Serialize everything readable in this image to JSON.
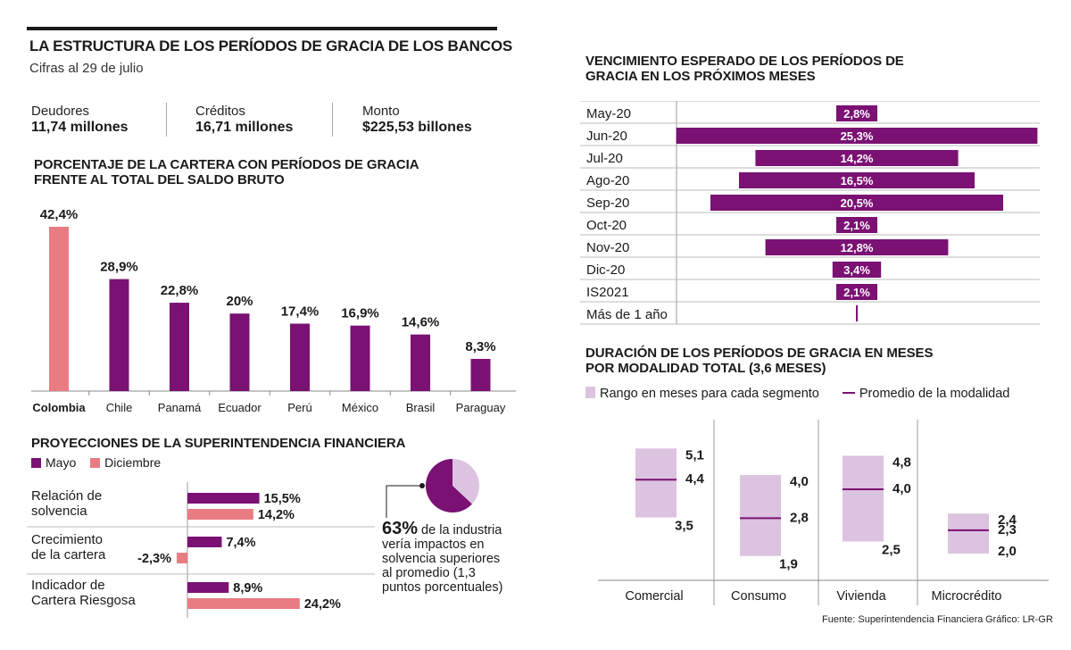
{
  "header": {
    "title": "LA ESTRUCTURA DE LOS PERÍODOS DE GRACIA DE LOS BANCOS",
    "subtitle": "Cifras al 29 de julio"
  },
  "stats": [
    {
      "label": "Deudores",
      "value": "11,74 millones"
    },
    {
      "label": "Créditos",
      "value": "16,71 millones"
    },
    {
      "label": "Monto",
      "value": "$225,53 billones"
    }
  ],
  "colors": {
    "purple": "#7a1173",
    "pink": "#e97b83",
    "lavender": "#dcc3e0",
    "avg": "#7a1173"
  },
  "chart_data": [
    {
      "type": "bar",
      "title": "PORCENTAJE DE LA CARTERA CON PERÍODOS DE GRACIA FRENTE AL TOTAL DEL SALDO BRUTO",
      "categories": [
        "Colombia",
        "Chile",
        "Panamá",
        "Ecuador",
        "Perú",
        "México",
        "Brasil",
        "Paraguay"
      ],
      "values": [
        42.4,
        28.9,
        22.8,
        20,
        17.4,
        16.9,
        14.6,
        8.3
      ],
      "labels": [
        "42,4%",
        "28,9%",
        "22,8%",
        "20%",
        "17,4%",
        "16,9%",
        "14,6%",
        "8,3%"
      ],
      "highlight": "Colombia",
      "ylim": [
        0,
        42.4
      ]
    },
    {
      "type": "bar",
      "orientation": "horizontal",
      "title": "PROYECCIONES DE LA SUPERINTENDENCIA FINANCIERA",
      "categories": [
        "Relación de solvencia",
        "Crecimiento de la cartera",
        "Indicador de Cartera Riesgosa"
      ],
      "category_lines": [
        [
          "Relación de",
          "solvencia"
        ],
        [
          "Crecimiento",
          "de la cartera"
        ],
        [
          "Indicador de",
          "Cartera Riesgosa"
        ]
      ],
      "series": [
        {
          "name": "Mayo",
          "values": [
            15.5,
            7.4,
            8.9
          ],
          "labels": [
            "15,5%",
            "7,4%",
            "8,9%"
          ]
        },
        {
          "name": "Diciembre",
          "values": [
            14.2,
            -2.3,
            24.2
          ],
          "labels": [
            "14,2%",
            "-2,3%",
            "24,2%"
          ]
        }
      ]
    },
    {
      "type": "pie",
      "values": [
        63,
        37
      ],
      "highlight_text": "63%",
      "caption_lines": [
        " de la industria",
        "vería impactos en",
        "solvencia superiores",
        "al promedio (1,3",
        "puntos porcentuales)"
      ]
    },
    {
      "type": "bar",
      "orientation": "horizontal-centered",
      "title": "VENCIMIENTO ESPERADO DE LOS PERÍODOS DE GRACIA EN LOS PRÓXIMOS MESES",
      "categories": [
        "May-20",
        "Jun-20",
        "Jul-20",
        "Ago-20",
        "Sep-20",
        "Oct-20",
        "Nov-20",
        "Dic-20",
        "IS2021",
        "Más de 1 año"
      ],
      "values": [
        2.8,
        25.3,
        14.2,
        16.5,
        20.5,
        2.1,
        12.8,
        3.4,
        2.1,
        0
      ],
      "labels": [
        "2,8%",
        "25,3%",
        "14,2%",
        "16,5%",
        "20,5%",
        "2,1%",
        "12,8%",
        "3,4%",
        "2,1%",
        ""
      ]
    },
    {
      "type": "range",
      "title": "DURACIÓN DE LOS PERÍODOS DE GRACIA EN MESES POR MODALIDAD TOTAL (3,6 MESES)",
      "legend": [
        "Rango en meses para cada segmento",
        "Promedio de la modalidad"
      ],
      "categories": [
        "Comercial",
        "Consumo",
        "Vivienda",
        "Microcrédito"
      ],
      "max": [
        5.1,
        4.0,
        4.8,
        2.4
      ],
      "avg": [
        4.4,
        2.8,
        4.0,
        2.3
      ],
      "min": [
        3.5,
        1.9,
        2.5,
        2.0
      ],
      "max_labels": [
        "5,1",
        "4,0",
        "4,8",
        "2,4"
      ],
      "avg_labels": [
        "4,4",
        "2,8",
        "4,0",
        "2,3"
      ],
      "min_labels": [
        "3,5",
        "1,9",
        "2,5",
        "2,0"
      ]
    }
  ],
  "footer": {
    "source": "Fuente: Superintendencia Financiera",
    "credit": "Gráfico: LR-GR"
  }
}
